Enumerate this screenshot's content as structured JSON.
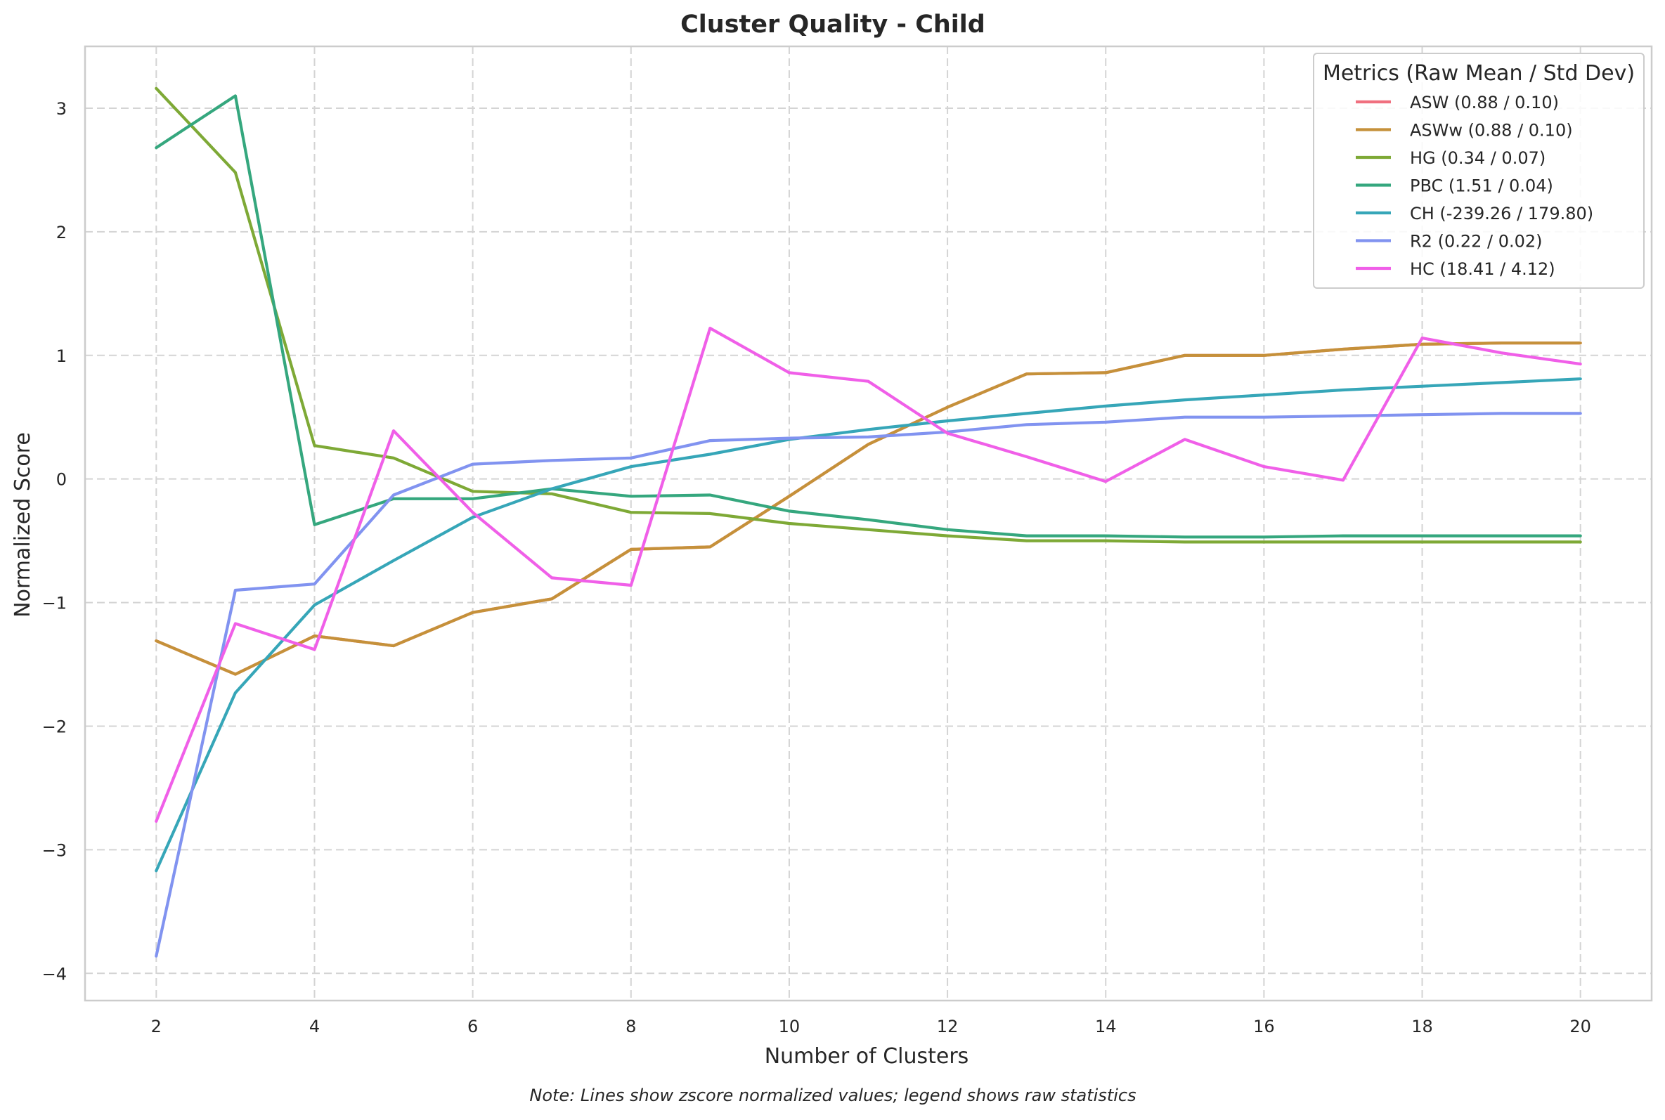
{
  "chart_data": {
    "type": "line",
    "title": "Cluster Quality - Child",
    "xlabel": "Number of Clusters",
    "ylabel": "Normalized Score",
    "note": "Note: Lines show zscore normalized values; legend shows raw statistics",
    "xlim": [
      1.1,
      20.9
    ],
    "ylim": [
      -4.22,
      3.5
    ],
    "x_ticks": [
      2,
      4,
      6,
      8,
      10,
      12,
      14,
      16,
      18,
      20
    ],
    "y_ticks": [
      3,
      2,
      1,
      0,
      -1,
      -2,
      -3,
      -4
    ],
    "y_tick_labels": [
      "3",
      "2",
      "1",
      "0",
      "−1",
      "−2",
      "−3",
      "−4"
    ],
    "grid": true,
    "legend_title": "Metrics (Raw Mean / Std Dev)",
    "legend_position": "top-right",
    "x": [
      2,
      3,
      4,
      5,
      6,
      7,
      8,
      9,
      10,
      11,
      12,
      13,
      14,
      15,
      16,
      17,
      18,
      19,
      20
    ],
    "series": [
      {
        "name": "ASW",
        "label": "ASW (0.88 / 0.10)",
        "color": "#f0707f",
        "values": [
          -1.31,
          -1.58,
          -1.27,
          -1.35,
          -1.08,
          -0.97,
          -0.57,
          -0.55,
          -0.14,
          0.28,
          0.58,
          0.85,
          0.86,
          1.0,
          1.0,
          1.05,
          1.09,
          1.1,
          1.1
        ]
      },
      {
        "name": "ASWw",
        "label": "ASWw (0.88 / 0.10)",
        "color": "#c5913a",
        "values": [
          -1.31,
          -1.58,
          -1.27,
          -1.35,
          -1.08,
          -0.97,
          -0.57,
          -0.55,
          -0.14,
          0.28,
          0.58,
          0.85,
          0.86,
          1.0,
          1.0,
          1.05,
          1.09,
          1.1,
          1.1
        ]
      },
      {
        "name": "HG",
        "label": "HG (0.34 / 0.07)",
        "color": "#7ea936",
        "values": [
          3.16,
          2.48,
          0.27,
          0.17,
          -0.1,
          -0.12,
          -0.27,
          -0.28,
          -0.36,
          -0.41,
          -0.46,
          -0.5,
          -0.5,
          -0.51,
          -0.51,
          -0.51,
          -0.51,
          -0.51,
          -0.51
        ]
      },
      {
        "name": "PBC",
        "label": "PBC (1.51 / 0.04)",
        "color": "#35a77e",
        "values": [
          2.68,
          3.1,
          -0.37,
          -0.16,
          -0.16,
          -0.08,
          -0.14,
          -0.13,
          -0.26,
          -0.33,
          -0.41,
          -0.46,
          -0.46,
          -0.47,
          -0.47,
          -0.46,
          -0.46,
          -0.46,
          -0.46
        ]
      },
      {
        "name": "CH",
        "label": "CH (-239.26 / 179.80)",
        "color": "#36a6b8",
        "values": [
          -3.17,
          -1.73,
          -1.02,
          -0.66,
          -0.31,
          -0.08,
          0.1,
          0.2,
          0.32,
          0.4,
          0.47,
          0.53,
          0.59,
          0.64,
          0.68,
          0.72,
          0.75,
          0.78,
          0.81
        ]
      },
      {
        "name": "R2",
        "label": "R2 (0.22 / 0.02)",
        "color": "#8193f0",
        "values": [
          -3.86,
          -0.9,
          -0.85,
          -0.13,
          0.12,
          0.15,
          0.17,
          0.31,
          0.33,
          0.34,
          0.38,
          0.44,
          0.46,
          0.5,
          0.5,
          0.51,
          0.52,
          0.53,
          0.53
        ]
      },
      {
        "name": "HC",
        "label": "HC (18.41 / 4.12)",
        "color": "#f05fe8",
        "values": [
          -2.77,
          -1.17,
          -1.38,
          0.39,
          -0.27,
          -0.8,
          -0.86,
          1.22,
          0.86,
          0.79,
          0.37,
          0.18,
          -0.02,
          0.32,
          0.1,
          -0.01,
          1.14,
          1.02,
          0.93
        ]
      }
    ]
  }
}
